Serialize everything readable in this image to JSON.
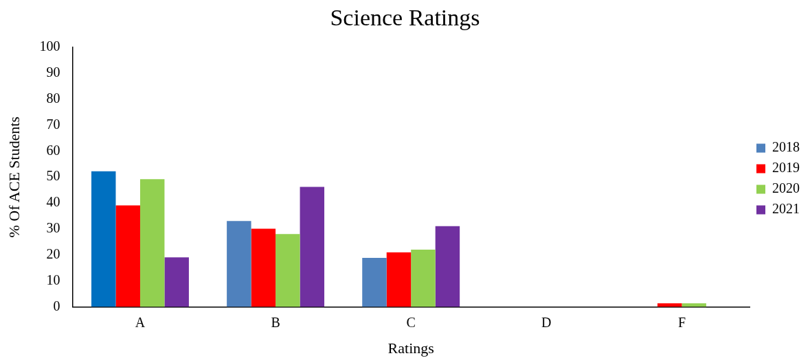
{
  "chart_data": {
    "type": "bar",
    "title": "Science Ratings",
    "xlabel": "Ratings",
    "ylabel": "% Of ACE Students",
    "categories": [
      "A",
      "B",
      "C",
      "D",
      "F"
    ],
    "series": [
      {
        "name": "2018",
        "color": "#4f81bd",
        "colors": [
          "#0070c0",
          "#4f81bd",
          "#4f81bd",
          "#4f81bd",
          "#4f81bd"
        ],
        "values": [
          52.2,
          33.1,
          18.9,
          0,
          0
        ]
      },
      {
        "name": "2019",
        "color": "#ff0000",
        "values": [
          39.1,
          30.1,
          21.0,
          0,
          1.4
        ]
      },
      {
        "name": "2020",
        "color": "#92d050",
        "values": [
          49.2,
          28.1,
          22.1,
          0,
          1.4
        ]
      },
      {
        "name": "2021",
        "color": "#7030a0",
        "values": [
          19.1,
          46.2,
          31.1,
          0,
          0
        ]
      }
    ],
    "ylim": [
      0,
      100
    ],
    "yticks": [
      0,
      10,
      20,
      30,
      40,
      50,
      60,
      70,
      80,
      90,
      100
    ],
    "grid": false,
    "legend": "right"
  }
}
